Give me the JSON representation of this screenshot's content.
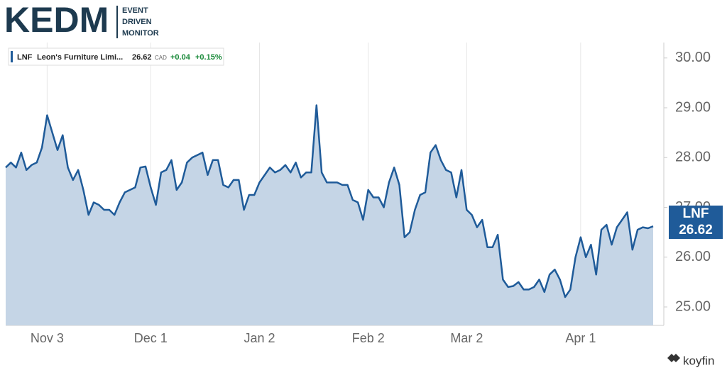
{
  "logo": {
    "mark": "KEDM",
    "lines": [
      "EVENT",
      "DRIVEN",
      "MONITOR"
    ]
  },
  "footer": "koyfin",
  "chart_data": {
    "type": "area",
    "legend": {
      "description": "Leon's Furniture Limi...",
      "currency": "CAD",
      "change": "+0.04",
      "change_pct": "+0.15%"
    },
    "categories": [
      null,
      null,
      null,
      null,
      null,
      null,
      null,
      null,
      "Nov 3",
      null,
      null,
      null,
      null,
      null,
      null,
      null,
      null,
      null,
      null,
      null,
      null,
      null,
      null,
      null,
      null,
      null,
      null,
      null,
      "Dec 1",
      null,
      null,
      null,
      null,
      null,
      null,
      null,
      null,
      null,
      null,
      null,
      null,
      null,
      null,
      null,
      null,
      null,
      null,
      null,
      null,
      "Jan 2",
      null,
      null,
      null,
      null,
      null,
      null,
      null,
      null,
      null,
      null,
      null,
      null,
      null,
      null,
      null,
      null,
      null,
      null,
      null,
      null,
      "Feb 2",
      null,
      null,
      null,
      null,
      null,
      null,
      null,
      null,
      null,
      null,
      null,
      null,
      null,
      null,
      null,
      null,
      null,
      null,
      "Mar 2",
      null,
      null,
      null,
      null,
      null,
      null,
      null,
      null,
      null,
      null,
      null,
      null,
      null,
      null,
      null,
      null,
      null,
      null,
      null,
      null,
      null,
      "Apr 1",
      null,
      null,
      null,
      null,
      null,
      null,
      null,
      null,
      null,
      null,
      null,
      null,
      null,
      null
    ],
    "series": [
      {
        "name": "LNF",
        "color": "#1f5b99",
        "fill": "#c5d5e6",
        "values": [
          27.8,
          27.9,
          27.8,
          28.1,
          27.75,
          27.85,
          27.9,
          28.2,
          28.85,
          28.5,
          28.15,
          28.45,
          27.8,
          27.55,
          27.75,
          27.35,
          26.85,
          27.1,
          27.05,
          26.95,
          26.95,
          26.85,
          27.1,
          27.3,
          27.35,
          27.4,
          27.8,
          27.82,
          27.4,
          27.05,
          27.7,
          27.75,
          27.95,
          27.35,
          27.5,
          27.9,
          28.0,
          28.05,
          28.1,
          27.65,
          27.95,
          27.95,
          27.45,
          27.4,
          27.55,
          27.55,
          26.95,
          27.25,
          27.25,
          27.5,
          27.65,
          27.8,
          27.7,
          27.75,
          27.85,
          27.7,
          27.9,
          27.6,
          27.7,
          27.7,
          29.05,
          27.7,
          27.5,
          27.5,
          27.5,
          27.45,
          27.45,
          27.15,
          27.1,
          26.75,
          27.35,
          27.2,
          27.2,
          27.0,
          27.5,
          27.8,
          27.45,
          26.4,
          26.5,
          26.95,
          27.25,
          27.3,
          28.1,
          28.25,
          27.95,
          27.75,
          27.7,
          27.2,
          27.75,
          26.95,
          26.85,
          26.6,
          26.75,
          26.2,
          26.2,
          26.45,
          25.55,
          25.4,
          25.42,
          25.5,
          25.35,
          25.35,
          25.4,
          25.55,
          25.3,
          25.65,
          25.75,
          25.55,
          25.2,
          25.35,
          26.0,
          26.4,
          26.0,
          26.25,
          25.65,
          26.55,
          26.65,
          26.25,
          26.6,
          26.75,
          26.9,
          26.15,
          26.55,
          26.6,
          26.58,
          26.62
        ]
      }
    ],
    "ylim": [
      24.63,
      30.31
    ],
    "yticks": [
      {
        "value": 25,
        "label": "25.00"
      },
      {
        "value": 26,
        "label": "26.00"
      },
      {
        "value": 27,
        "label": "27.00"
      },
      {
        "value": 28,
        "label": "28.00"
      },
      {
        "value": 29,
        "label": "29.00"
      },
      {
        "value": 30,
        "label": "30.00"
      }
    ],
    "grid": true
  }
}
